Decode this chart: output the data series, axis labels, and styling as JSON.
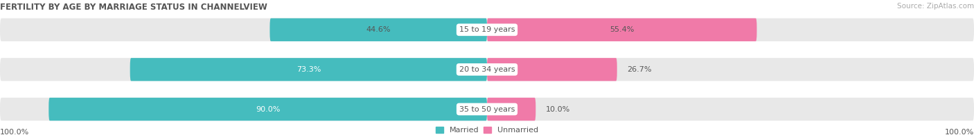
{
  "title": "FERTILITY BY AGE BY MARRIAGE STATUS IN CHANNELVIEW",
  "source": "Source: ZipAtlas.com",
  "categories": [
    "15 to 19 years",
    "20 to 34 years",
    "35 to 50 years"
  ],
  "married_pct": [
    44.6,
    73.3,
    90.0
  ],
  "unmarried_pct": [
    55.4,
    26.7,
    10.0
  ],
  "married_color": "#45bcbe",
  "unmarried_color": "#f07aa8",
  "bar_bg_color": "#e8e8e8",
  "title_color": "#555555",
  "label_color": "#555555",
  "bar_height": 0.58,
  "bar_spacing": 1.0,
  "figsize": [
    14.06,
    1.96
  ],
  "dpi": 100,
  "legend_married": "Married",
  "legend_unmarried": "Unmarried",
  "left_axis_label": "100.0%",
  "right_axis_label": "100.0%",
  "title_fontsize": 8.5,
  "source_fontsize": 7.5,
  "bar_label_fontsize": 8,
  "category_fontsize": 8,
  "legend_fontsize": 8,
  "axis_label_fontsize": 8
}
